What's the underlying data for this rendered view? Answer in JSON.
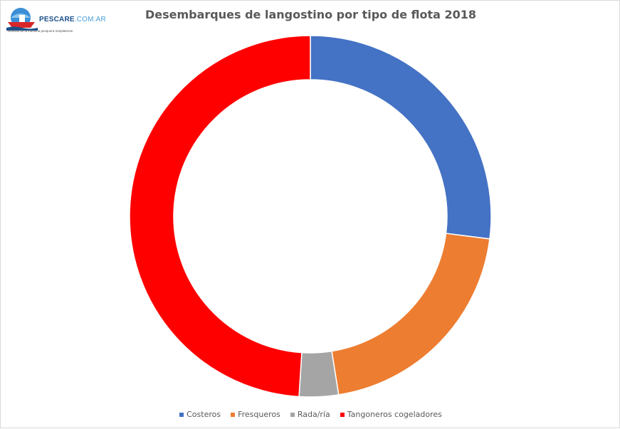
{
  "logo": {
    "brand_bold": "PESCARE",
    "brand_light": ".COM.AR",
    "tagline": "Noticias de la industria pesquera marplatense"
  },
  "chart_data": {
    "type": "pie",
    "variant": "doughnut",
    "title": "Desembarques de langostino por tipo de flota 2018",
    "legend_position": "bottom",
    "series": [
      {
        "name": "Costeros",
        "value": 27.0,
        "color": "#4472C4"
      },
      {
        "name": "Fresqueros",
        "value": 20.5,
        "color": "#ED7D31"
      },
      {
        "name": "Rada/ría",
        "value": 3.5,
        "color": "#A5A5A5"
      },
      {
        "name": "Tangoneros cogeladores",
        "value": 49.0,
        "color": "#FF0000"
      }
    ]
  }
}
